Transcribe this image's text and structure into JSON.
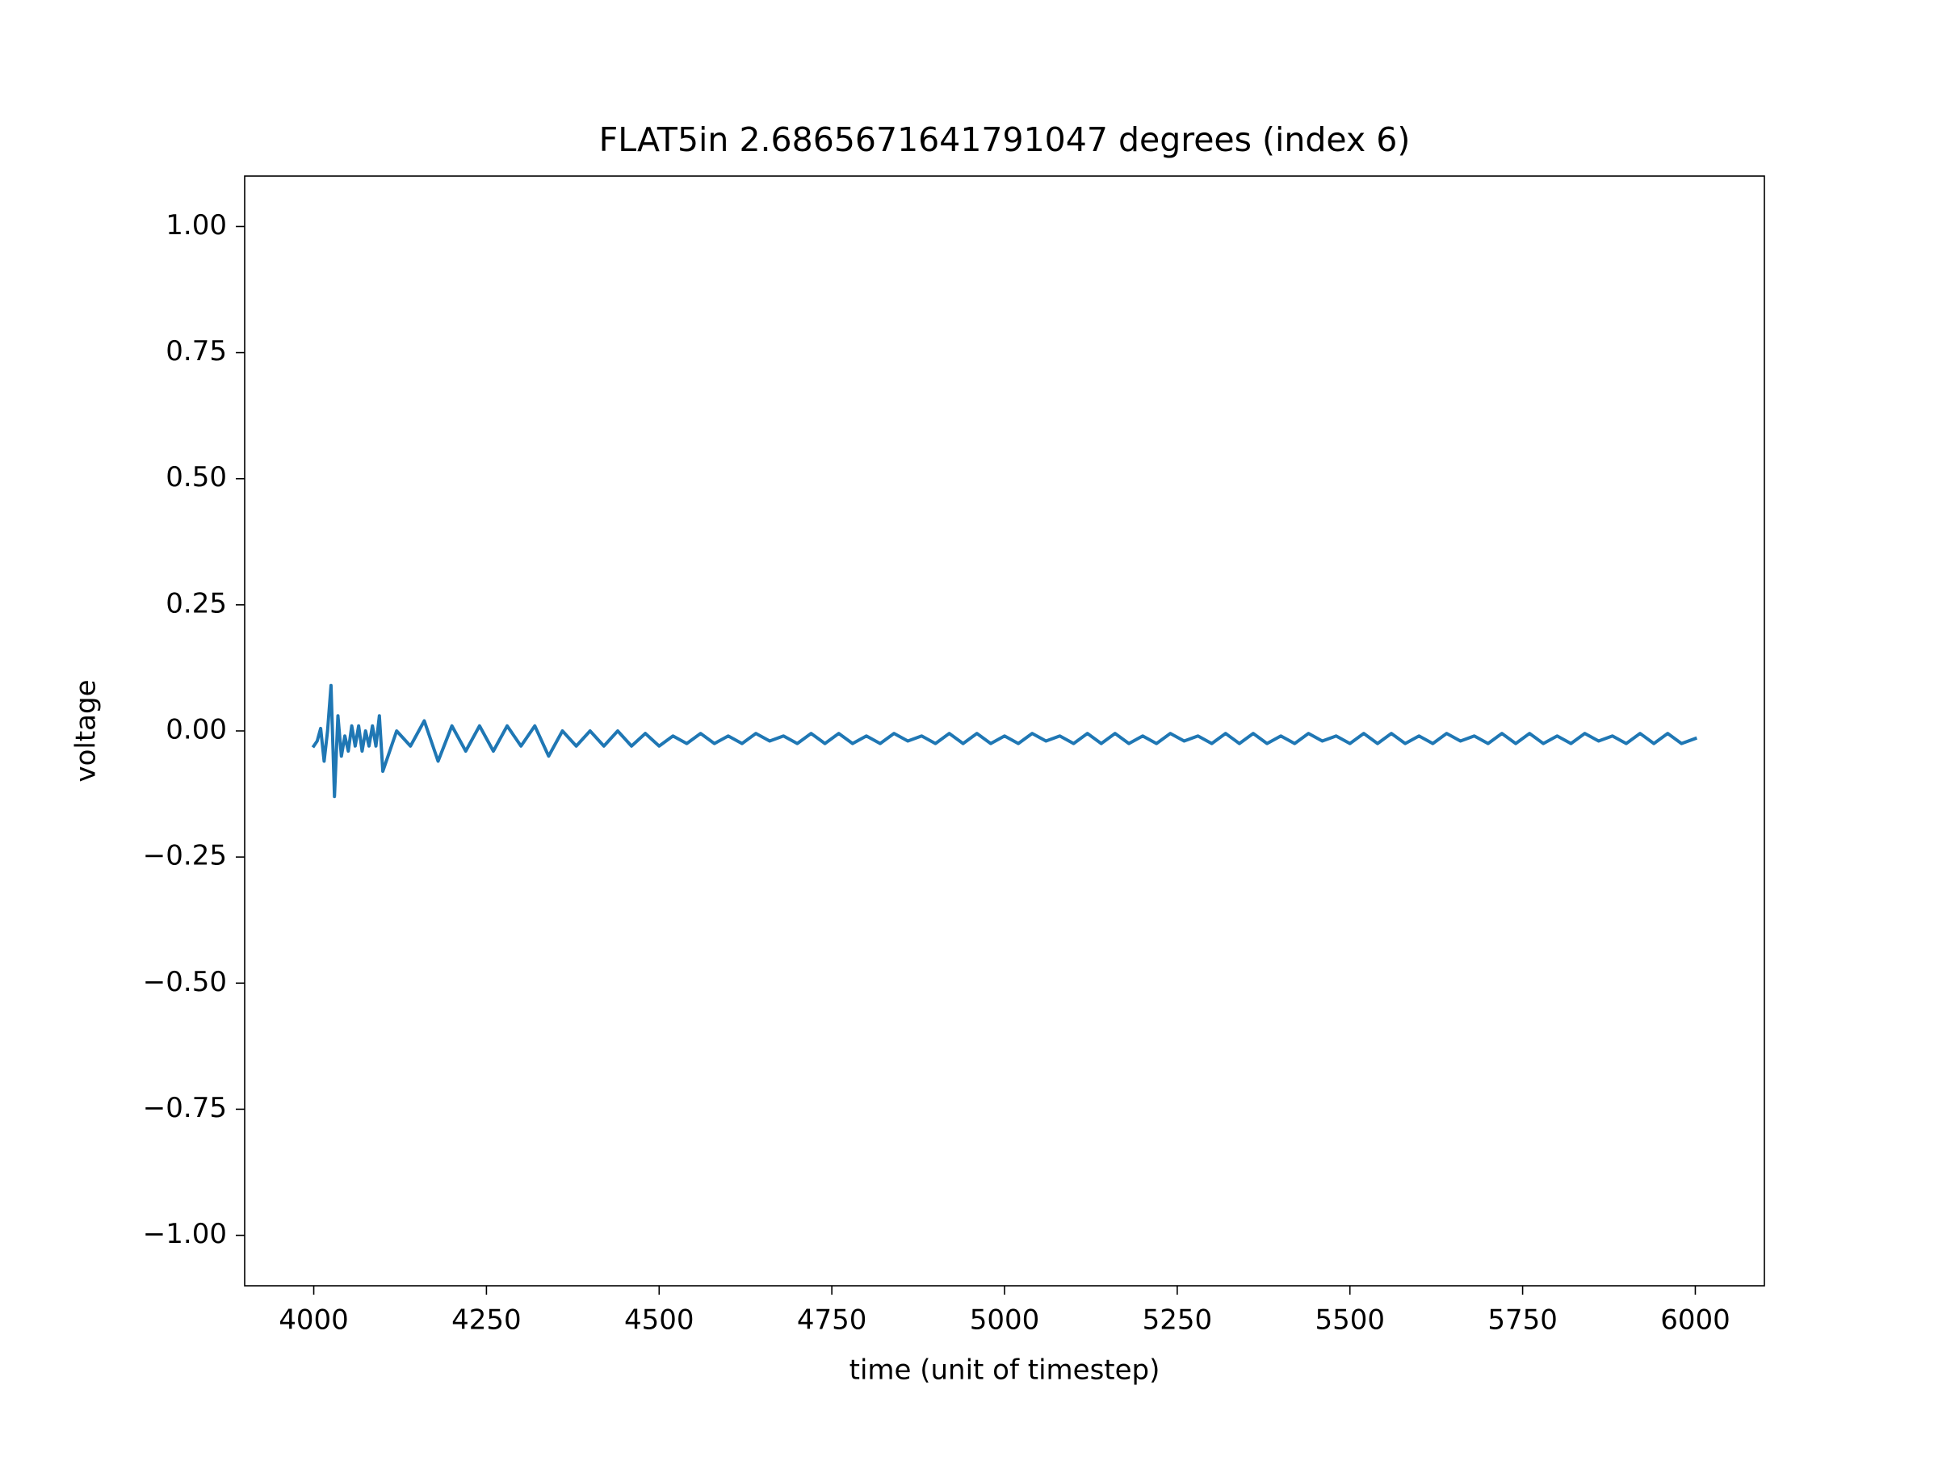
{
  "chart_data": {
    "type": "line",
    "title": "FLAT5in 2.6865671641791047 degrees (index 6)",
    "x_label": "time (unit of timestep)",
    "y_label": "voltage",
    "x": [
      4000,
      4005,
      4010,
      4015,
      4020,
      4025,
      4030,
      4035,
      4040,
      4045,
      4050,
      4055,
      4060,
      4065,
      4070,
      4075,
      4080,
      4085,
      4090,
      4095,
      4100,
      4120,
      4140,
      4160,
      4180,
      4200,
      4220,
      4240,
      4260,
      4280,
      4300,
      4320,
      4340,
      4360,
      4380,
      4400,
      4420,
      4440,
      4460,
      4480,
      4500,
      4520,
      4540,
      4560,
      4580,
      4600,
      4620,
      4640,
      4660,
      4680,
      4700,
      4720,
      4740,
      4760,
      4780,
      4800,
      4820,
      4840,
      4860,
      4880,
      4900,
      4920,
      4940,
      4960,
      4980,
      5000,
      5020,
      5040,
      5060,
      5080,
      5100,
      5120,
      5140,
      5160,
      5180,
      5200,
      5220,
      5240,
      5260,
      5280,
      5300,
      5320,
      5340,
      5360,
      5380,
      5400,
      5420,
      5440,
      5460,
      5480,
      5500,
      5520,
      5540,
      5560,
      5580,
      5600,
      5620,
      5640,
      5660,
      5680,
      5700,
      5720,
      5740,
      5760,
      5780,
      5800,
      5820,
      5840,
      5860,
      5880,
      5900,
      5920,
      5940,
      5960,
      5980,
      6000
    ],
    "series": [
      {
        "name": "voltage",
        "color": "#1f77b4",
        "values": [
          -0.03,
          -0.02,
          0.005,
          -0.06,
          0.0,
          0.09,
          -0.13,
          0.03,
          -0.05,
          -0.01,
          -0.04,
          0.01,
          -0.03,
          0.01,
          -0.04,
          0.0,
          -0.03,
          0.01,
          -0.03,
          0.03,
          -0.08,
          0.0,
          -0.03,
          0.02,
          -0.06,
          0.01,
          -0.04,
          0.01,
          -0.04,
          0.01,
          -0.03,
          0.01,
          -0.05,
          0.0,
          -0.03,
          0.0,
          -0.03,
          0.0,
          -0.03,
          -0.005,
          -0.03,
          -0.01,
          -0.025,
          -0.005,
          -0.025,
          -0.01,
          -0.025,
          -0.005,
          -0.02,
          -0.01,
          -0.025,
          -0.005,
          -0.025,
          -0.005,
          -0.025,
          -0.01,
          -0.025,
          -0.005,
          -0.02,
          -0.01,
          -0.025,
          -0.005,
          -0.025,
          -0.005,
          -0.025,
          -0.01,
          -0.025,
          -0.005,
          -0.02,
          -0.01,
          -0.025,
          -0.005,
          -0.025,
          -0.005,
          -0.025,
          -0.01,
          -0.025,
          -0.005,
          -0.02,
          -0.01,
          -0.025,
          -0.005,
          -0.025,
          -0.005,
          -0.025,
          -0.01,
          -0.025,
          -0.005,
          -0.02,
          -0.01,
          -0.025,
          -0.005,
          -0.025,
          -0.005,
          -0.025,
          -0.01,
          -0.025,
          -0.005,
          -0.02,
          -0.01,
          -0.025,
          -0.005,
          -0.025,
          -0.005,
          -0.025,
          -0.01,
          -0.025,
          -0.005,
          -0.02,
          -0.01,
          -0.025,
          -0.005,
          -0.025,
          -0.005,
          -0.025,
          -0.015
        ]
      }
    ],
    "xlim": [
      3900,
      6100
    ],
    "ylim": [
      -1.1,
      1.1
    ],
    "xticks": [
      4000,
      4250,
      4500,
      4750,
      5000,
      5250,
      5500,
      5750,
      6000
    ],
    "yticks": [
      {
        "value": -1,
        "label": "−1.00"
      },
      {
        "value": -0.75,
        "label": "−0.75"
      },
      {
        "value": -0.5,
        "label": "−0.50"
      },
      {
        "value": -0.25,
        "label": "−0.25"
      },
      {
        "value": 0,
        "label": "0.00"
      },
      {
        "value": 0.25,
        "label": "0.25"
      },
      {
        "value": 0.5,
        "label": "0.50"
      },
      {
        "value": 0.75,
        "label": "0.75"
      },
      {
        "value": 1,
        "label": "1.00"
      }
    ],
    "grid": false
  }
}
